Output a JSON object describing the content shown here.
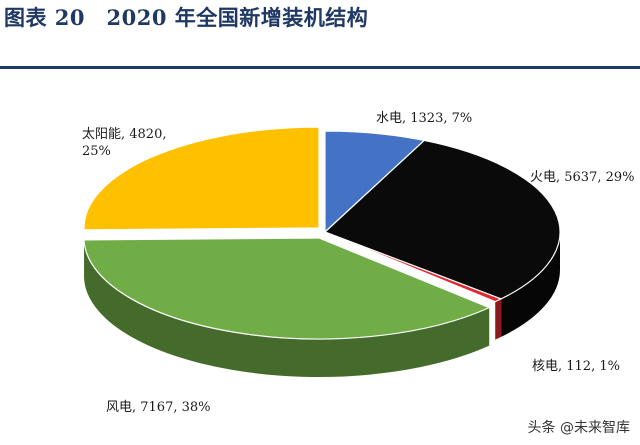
{
  "header": {
    "title": "图表 20　2020 年全国新增装机结构"
  },
  "watermark": "头条 @未来智库",
  "chart_data": {
    "type": "pie",
    "style": "3d",
    "categories": [
      "水电",
      "火电",
      "核电",
      "风电",
      "太阳能"
    ],
    "values": [
      1323,
      5637,
      112,
      7167,
      4820
    ],
    "percents": [
      7,
      29,
      1,
      38,
      25
    ],
    "labels": [
      [
        "水电, 1323, 7%"
      ],
      [
        "火电, 5637, 29%"
      ],
      [
        "核电, 112, 1%"
      ],
      [
        "风电, 7167, 38%"
      ],
      [
        "太阳能, 4820,",
        "25%"
      ]
    ],
    "colors": [
      "#4472c4",
      "#0a0a0a",
      "#e0282e",
      "#70ad47",
      "#ffc000"
    ],
    "legend": "none"
  }
}
